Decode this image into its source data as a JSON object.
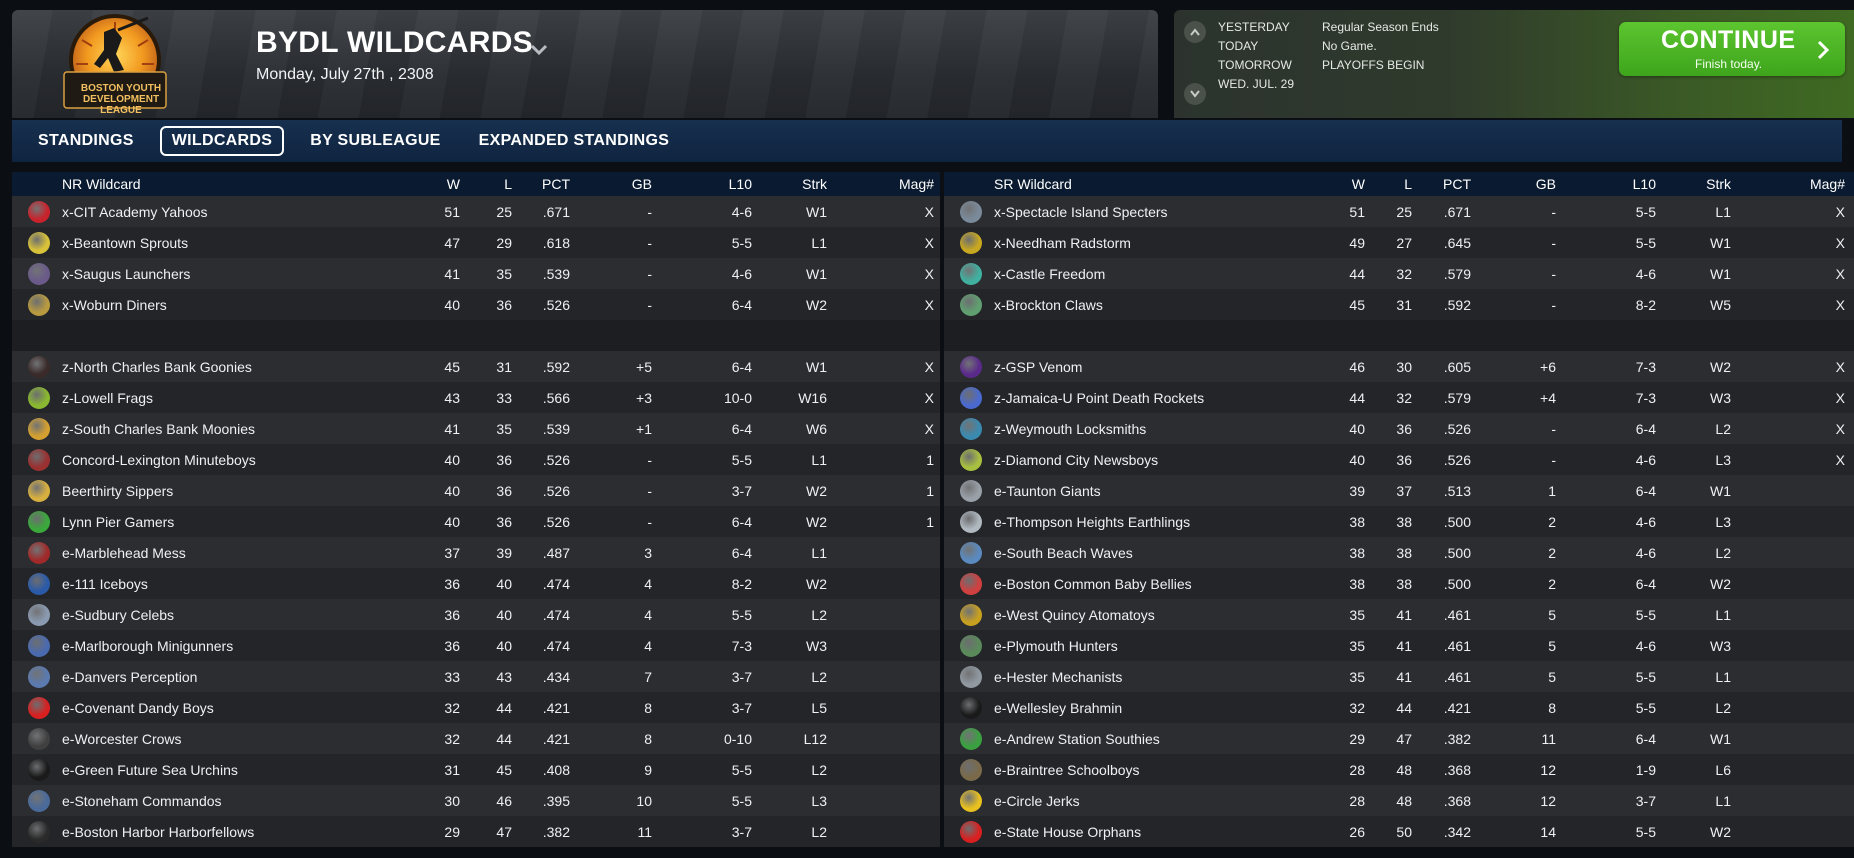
{
  "header": {
    "logo_text": "BOSTON YOUTH DEVELOPMENT LEAGUE",
    "title": "BYDL WILDCARDS",
    "date": "Monday, July 27th , 2308"
  },
  "schedule": {
    "rows": [
      {
        "label": "YESTERDAY",
        "value": "Regular Season Ends"
      },
      {
        "label": "TODAY",
        "value": "No Game."
      },
      {
        "label": "TOMORROW",
        "value": "PLAYOFFS BEGIN"
      },
      {
        "label": "WED. JUL. 29",
        "value": ""
      }
    ],
    "continue_label": "CONTINUE",
    "continue_sub": "Finish today."
  },
  "tabs": [
    "STANDINGS",
    "WILDCARDS",
    "BY SUBLEAGUE",
    "EXPANDED STANDINGS"
  ],
  "active_tab": "WILDCARDS",
  "columns": [
    "W",
    "L",
    "PCT",
    "GB",
    "L10",
    "Strk",
    "Mag#"
  ],
  "left_table": {
    "title": "NR  Wildcard",
    "rows": [
      {
        "name": "x-CIT Academy Yahoos",
        "w": "51",
        "l": "25",
        "pct": ".671",
        "gb": "-",
        "l10": "4-6",
        "strk": "W1",
        "mag": "X",
        "color": "#c8232c"
      },
      {
        "name": "x-Beantown Sprouts",
        "w": "47",
        "l": "29",
        "pct": ".618",
        "gb": "-",
        "l10": "5-5",
        "strk": "L1",
        "mag": "X",
        "color": "#d8c23a"
      },
      {
        "name": "x-Saugus Launchers",
        "w": "41",
        "l": "35",
        "pct": ".539",
        "gb": "-",
        "l10": "4-6",
        "strk": "W1",
        "mag": "X",
        "color": "#6a5a8a"
      },
      {
        "name": "x-Woburn Diners",
        "w": "40",
        "l": "36",
        "pct": ".526",
        "gb": "-",
        "l10": "6-4",
        "strk": "W2",
        "mag": "X",
        "color": "#b89a40"
      },
      {
        "blank": true
      },
      {
        "name": "z-North Charles Bank Goonies",
        "w": "45",
        "l": "31",
        "pct": ".592",
        "gb": "+5",
        "l10": "6-4",
        "strk": "W1",
        "mag": "X",
        "color": "#3a2a2a"
      },
      {
        "name": "z-Lowell Frags",
        "w": "43",
        "l": "33",
        "pct": ".566",
        "gb": "+3",
        "l10": "10-0",
        "strk": "W16",
        "mag": "X",
        "color": "#8ab830"
      },
      {
        "name": "z-South Charles Bank Moonies",
        "w": "41",
        "l": "35",
        "pct": ".539",
        "gb": "+1",
        "l10": "6-4",
        "strk": "W6",
        "mag": "X",
        "color": "#d4a030"
      },
      {
        "name": "Concord-Lexington Minuteboys",
        "w": "40",
        "l": "36",
        "pct": ".526",
        "gb": "-",
        "l10": "5-5",
        "strk": "L1",
        "mag": "1",
        "color": "#9a3030"
      },
      {
        "name": "Beerthirty Sippers",
        "w": "40",
        "l": "36",
        "pct": ".526",
        "gb": "-",
        "l10": "3-7",
        "strk": "W2",
        "mag": "1",
        "color": "#d8b040"
      },
      {
        "name": "Lynn Pier Gamers",
        "w": "40",
        "l": "36",
        "pct": ".526",
        "gb": "-",
        "l10": "6-4",
        "strk": "W2",
        "mag": "1",
        "color": "#3aa83a"
      },
      {
        "name": "e-Marblehead Mess",
        "w": "37",
        "l": "39",
        "pct": ".487",
        "gb": "3",
        "l10": "6-4",
        "strk": "L1",
        "mag": "",
        "color": "#a02a2a"
      },
      {
        "name": "e-111 Iceboys",
        "w": "36",
        "l": "40",
        "pct": ".474",
        "gb": "4",
        "l10": "8-2",
        "strk": "W2",
        "mag": "",
        "color": "#2a5aa8"
      },
      {
        "name": "e-Sudbury Celebs",
        "w": "36",
        "l": "40",
        "pct": ".474",
        "gb": "4",
        "l10": "5-5",
        "strk": "L2",
        "mag": "",
        "color": "#8a9ab0"
      },
      {
        "name": "e-Marlborough Minigunners",
        "w": "36",
        "l": "40",
        "pct": ".474",
        "gb": "4",
        "l10": "7-3",
        "strk": "W3",
        "mag": "",
        "color": "#4a6ab0"
      },
      {
        "name": "e-Danvers Perception",
        "w": "33",
        "l": "43",
        "pct": ".434",
        "gb": "7",
        "l10": "3-7",
        "strk": "L2",
        "mag": "",
        "color": "#5a7ab0"
      },
      {
        "name": "e-Covenant Dandy Boys",
        "w": "32",
        "l": "44",
        "pct": ".421",
        "gb": "8",
        "l10": "3-7",
        "strk": "L5",
        "mag": "",
        "color": "#d82020"
      },
      {
        "name": "e-Worcester Crows",
        "w": "32",
        "l": "44",
        "pct": ".421",
        "gb": "8",
        "l10": "0-10",
        "strk": "L12",
        "mag": "",
        "color": "#404040"
      },
      {
        "name": "e-Green Future Sea Urchins",
        "w": "31",
        "l": "45",
        "pct": ".408",
        "gb": "9",
        "l10": "5-5",
        "strk": "L2",
        "mag": "",
        "color": "#1a1a1a"
      },
      {
        "name": "e-Stoneham Commandos",
        "w": "30",
        "l": "46",
        "pct": ".395",
        "gb": "10",
        "l10": "5-5",
        "strk": "L3",
        "mag": "",
        "color": "#4a6a9a"
      },
      {
        "name": "e-Boston Harbor Harborfellows",
        "w": "29",
        "l": "47",
        "pct": ".382",
        "gb": "11",
        "l10": "3-7",
        "strk": "L2",
        "mag": "",
        "color": "#2a2a2a"
      }
    ]
  },
  "right_table": {
    "title": "SR  Wildcard",
    "rows": [
      {
        "name": "x-Spectacle Island Specters",
        "w": "51",
        "l": "25",
        "pct": ".671",
        "gb": "-",
        "l10": "5-5",
        "strk": "L1",
        "mag": "X",
        "color": "#7a8a9a"
      },
      {
        "name": "x-Needham Radstorm",
        "w": "49",
        "l": "27",
        "pct": ".645",
        "gb": "-",
        "l10": "5-5",
        "strk": "W1",
        "mag": "X",
        "color": "#c8a820"
      },
      {
        "name": "x-Castle Freedom",
        "w": "44",
        "l": "32",
        "pct": ".579",
        "gb": "-",
        "l10": "4-6",
        "strk": "W1",
        "mag": "X",
        "color": "#40b0a0"
      },
      {
        "name": "x-Brockton Claws",
        "w": "45",
        "l": "31",
        "pct": ".592",
        "gb": "-",
        "l10": "8-2",
        "strk": "W5",
        "mag": "X",
        "color": "#60a070"
      },
      {
        "blank": true
      },
      {
        "name": "z-GSP Venom",
        "w": "46",
        "l": "30",
        "pct": ".605",
        "gb": "+6",
        "l10": "7-3",
        "strk": "W2",
        "mag": "X",
        "color": "#5a2a8a"
      },
      {
        "name": "z-Jamaica-U Point Death Rockets",
        "w": "44",
        "l": "32",
        "pct": ".579",
        "gb": "+4",
        "l10": "7-3",
        "strk": "W3",
        "mag": "X",
        "color": "#4a6ad0"
      },
      {
        "name": "z-Weymouth Locksmiths",
        "w": "40",
        "l": "36",
        "pct": ".526",
        "gb": "-",
        "l10": "6-4",
        "strk": "L2",
        "mag": "X",
        "color": "#3a8ab0"
      },
      {
        "name": "z-Diamond City Newsboys",
        "w": "40",
        "l": "36",
        "pct": ".526",
        "gb": "-",
        "l10": "4-6",
        "strk": "L3",
        "mag": "X",
        "color": "#a8c040"
      },
      {
        "name": "e-Taunton Giants",
        "w": "39",
        "l": "37",
        "pct": ".513",
        "gb": "1",
        "l10": "6-4",
        "strk": "W1",
        "mag": "",
        "color": "#9aa0a8"
      },
      {
        "name": "e-Thompson Heights Earthlings",
        "w": "38",
        "l": "38",
        "pct": ".500",
        "gb": "2",
        "l10": "4-6",
        "strk": "L3",
        "mag": "",
        "color": "#b0b8c0"
      },
      {
        "name": "e-South Beach Waves",
        "w": "38",
        "l": "38",
        "pct": ".500",
        "gb": "2",
        "l10": "4-6",
        "strk": "L2",
        "mag": "",
        "color": "#5a8ac0"
      },
      {
        "name": "e-Boston Common Baby Bellies",
        "w": "38",
        "l": "38",
        "pct": ".500",
        "gb": "2",
        "l10": "6-4",
        "strk": "W2",
        "mag": "",
        "color": "#d04040"
      },
      {
        "name": "e-West Quincy Atomatoys",
        "w": "35",
        "l": "41",
        "pct": ".461",
        "gb": "5",
        "l10": "5-5",
        "strk": "L1",
        "mag": "",
        "color": "#c8a020"
      },
      {
        "name": "e-Plymouth Hunters",
        "w": "35",
        "l": "41",
        "pct": ".461",
        "gb": "5",
        "l10": "4-6",
        "strk": "W3",
        "mag": "",
        "color": "#5a8a5a"
      },
      {
        "name": "e-Hester Mechanists",
        "w": "35",
        "l": "41",
        "pct": ".461",
        "gb": "5",
        "l10": "5-5",
        "strk": "L1",
        "mag": "",
        "color": "#9098a0"
      },
      {
        "name": "e-Wellesley Brahmin",
        "w": "32",
        "l": "44",
        "pct": ".421",
        "gb": "8",
        "l10": "5-5",
        "strk": "L2",
        "mag": "",
        "color": "#1a1a1a"
      },
      {
        "name": "e-Andrew Station Southies",
        "w": "29",
        "l": "47",
        "pct": ".382",
        "gb": "11",
        "l10": "6-4",
        "strk": "W1",
        "mag": "",
        "color": "#3aa040"
      },
      {
        "name": "e-Braintree Schoolboys",
        "w": "28",
        "l": "48",
        "pct": ".368",
        "gb": "12",
        "l10": "1-9",
        "strk": "L6",
        "mag": "",
        "color": "#7a6a4a"
      },
      {
        "name": "e-Circle Jerks",
        "w": "28",
        "l": "48",
        "pct": ".368",
        "gb": "12",
        "l10": "3-7",
        "strk": "L1",
        "mag": "",
        "color": "#e8c020"
      },
      {
        "name": "e-State House Orphans",
        "w": "26",
        "l": "50",
        "pct": ".342",
        "gb": "14",
        "l10": "5-5",
        "strk": "W2",
        "mag": "",
        "color": "#d82020"
      }
    ]
  }
}
